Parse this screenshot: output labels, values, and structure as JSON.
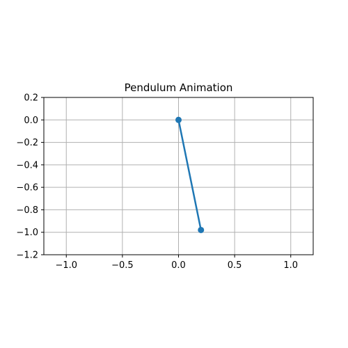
{
  "chart_data": {
    "type": "line",
    "title": "Pendulum Animation",
    "xlabel": "",
    "ylabel": "",
    "xlim": [
      -1.2,
      1.2
    ],
    "ylim": [
      -1.2,
      0.2
    ],
    "grid": true,
    "xticks": [
      -1.0,
      -0.5,
      0.0,
      0.5,
      1.0
    ],
    "xtick_labels": [
      "−1.0",
      "−0.5",
      "0.0",
      "0.5",
      "1.0"
    ],
    "yticks": [
      0.2,
      0.0,
      -0.2,
      -0.4,
      -0.6,
      -0.8,
      -1.0,
      -1.2
    ],
    "ytick_labels": [
      "0.2",
      "0.0",
      "−0.2",
      "−0.4",
      "−0.6",
      "−0.8",
      "−1.0",
      "−1.2"
    ],
    "series": [
      {
        "x": [
          0.0,
          0.2
        ],
        "y": [
          0.0,
          -0.98
        ],
        "color": "#1f77b4",
        "marker": "circle"
      }
    ],
    "colors": {
      "grid": "#b0b0b0",
      "axes": "#000000"
    }
  }
}
